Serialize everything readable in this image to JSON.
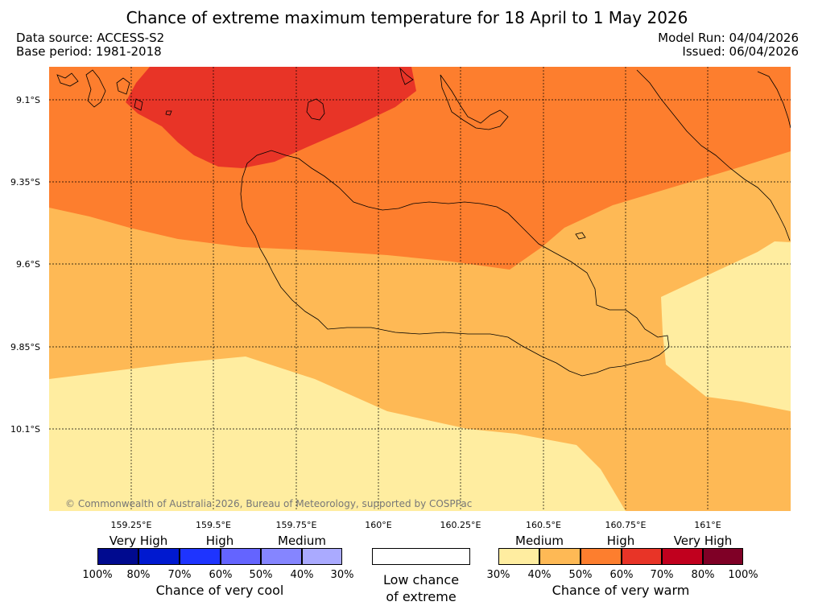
{
  "title": "Chance of extreme maximum temperature for 18 April to 1 May 2026",
  "data_source": "Data source: ACCESS-S2",
  "base_period": "Base period: 1981-2018",
  "model_run": "Model Run: 04/04/2026",
  "issued": "Issued: 06/04/2026",
  "copyright": "© Commonwealth of Australia 2026, Bureau of Meteorology, supported by COSPPac",
  "lat_labels": [
    "9.1°S",
    "9.35°S",
    "9.6°S",
    "9.85°S",
    "10.1°S"
  ],
  "lon_labels": [
    "159.25°E",
    "159.5°E",
    "159.75°E",
    "160°E",
    "160.25°E",
    "160.5°E",
    "160.75°E",
    "161°E"
  ],
  "colors": {
    "warm_30_40": "#ffeda0",
    "warm_40_50": "#feb955",
    "warm_50_60": "#fd7e2e",
    "warm_60_70": "#e83427",
    "warm_70_80": "#c1001e",
    "warm_80_100": "#7f0026",
    "cool_100_80": "#000a8f",
    "cool_80_70": "#0019d0",
    "cool_70_60": "#1e34ff",
    "cool_60_50": "#6464ff",
    "cool_50_40": "#8585ff",
    "cool_40_30": "#aaaaff"
  },
  "legend": {
    "cool": {
      "categories": [
        "Very High",
        "High",
        "Medium"
      ],
      "ticks": [
        "100%",
        "80%",
        "70%",
        "60%",
        "50%",
        "40%",
        "30%"
      ],
      "caption": "Chance of very cool"
    },
    "neutral": {
      "caption_line1": "Low chance",
      "caption_line2": "of extreme"
    },
    "warm": {
      "categories": [
        "Medium",
        "High",
        "Very High"
      ],
      "ticks": [
        "30%",
        "40%",
        "50%",
        "60%",
        "70%",
        "80%",
        "100%"
      ],
      "caption": "Chance of very warm"
    }
  }
}
